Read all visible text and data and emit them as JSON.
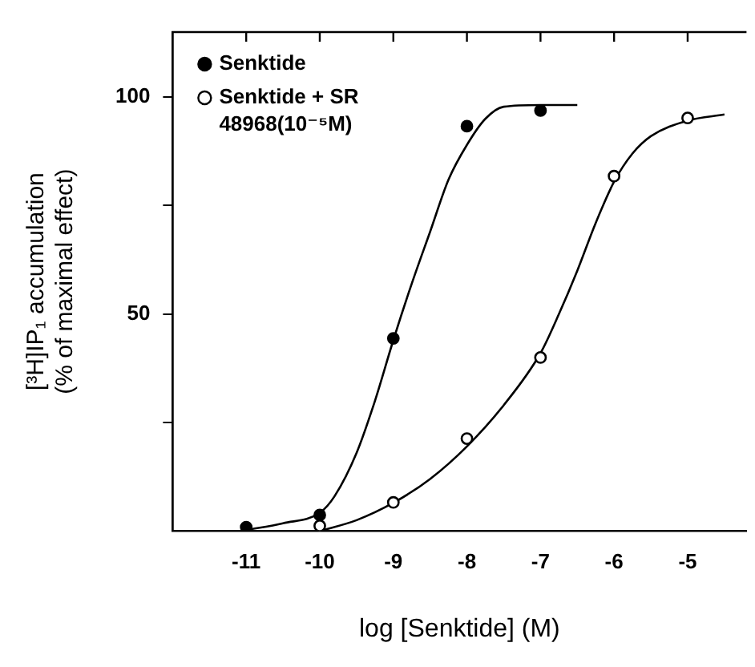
{
  "chart_data": {
    "type": "scatter",
    "xlabel": "log [Senktide] (M)",
    "ylabel": "[³H]IP₁ accumulation\n(% of maximal effect)",
    "xlim": [
      -12,
      -4.2
    ],
    "xticks": [
      -11,
      -10,
      -9,
      -8,
      -7,
      -6,
      -5
    ],
    "ylim": [
      0,
      115
    ],
    "yticks": [
      {
        "value": 25,
        "label": null
      },
      50,
      {
        "value": 75,
        "label": null
      },
      100
    ],
    "grid": false,
    "legend": "top left",
    "marker": "circle",
    "series": [
      {
        "name": "Senktide",
        "color": "#000000",
        "x": [
          -11,
          -10,
          -9,
          -8,
          -7
        ],
        "values": [
          0.9,
          3.7,
          44.4,
          93.3,
          96.9
        ]
      },
      {
        "name": "Senktide + SR 48968(10⁻⁵M)",
        "color": "#ffffff",
        "x": [
          -10,
          -9,
          -8,
          -7,
          -6,
          -5
        ],
        "values": [
          1.2,
          6.6,
          21.3,
          40,
          81.8,
          95.2
        ]
      },
      {
        "type": "line",
        "marker": "none",
        "color": "#000000",
        "x": [
          -11,
          -10.5,
          -10,
          -9.8,
          -9.5,
          -9.25,
          -9,
          -8.75,
          -8.5,
          -8.25,
          -8,
          -7.75,
          -7.5,
          -7,
          -6.5
        ],
        "values": [
          0.2,
          1.8,
          4.2,
          8,
          18,
          30,
          44,
          57,
          69,
          81,
          89,
          95,
          97.8,
          98.2,
          98.2
        ]
      },
      {
        "type": "line",
        "marker": "none",
        "color": "#000000",
        "x": [
          -10,
          -9.5,
          -9,
          -8.5,
          -8,
          -7.5,
          -7,
          -6.75,
          -6.5,
          -6.25,
          -6,
          -5.75,
          -5.5,
          -5,
          -4.5
        ],
        "values": [
          0,
          2.5,
          6.5,
          12,
          19.5,
          29,
          41,
          50,
          60,
          71,
          80.5,
          87,
          91,
          94.6,
          96
        ]
      }
    ]
  }
}
